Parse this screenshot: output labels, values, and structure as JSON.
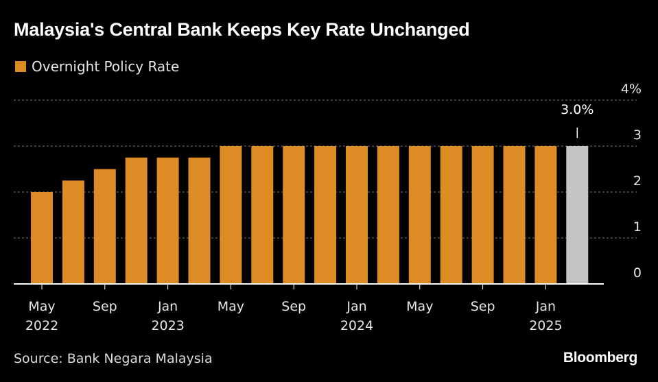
{
  "title": "Malaysia's Central Bank Keeps Key Rate Unchanged",
  "source": "Source: Bank Negara Malaysia",
  "brand": "Bloomberg",
  "colors": {
    "bar": "#dd8b24",
    "highlight": "#c4c4c4",
    "grid": "#7a7a7a",
    "background": "#000000"
  },
  "chart_data": {
    "type": "bar",
    "legend": [
      "Overnight Policy Rate"
    ],
    "legend_position": "top-left",
    "grid": true,
    "ylim": [
      0,
      4
    ],
    "y_ticks": [
      "0",
      "1",
      "2",
      "3",
      "4%"
    ],
    "x_tick_labels": [
      {
        "index": 0,
        "lines": [
          "May",
          "2022"
        ]
      },
      {
        "index": 2,
        "lines": [
          "Sep",
          ""
        ]
      },
      {
        "index": 4,
        "lines": [
          "Jan",
          "2023"
        ]
      },
      {
        "index": 6,
        "lines": [
          "May",
          ""
        ]
      },
      {
        "index": 8,
        "lines": [
          "Sep",
          ""
        ]
      },
      {
        "index": 10,
        "lines": [
          "Jan",
          "2024"
        ]
      },
      {
        "index": 12,
        "lines": [
          "May",
          ""
        ]
      },
      {
        "index": 14,
        "lines": [
          "Sep",
          ""
        ]
      },
      {
        "index": 16,
        "lines": [
          "Jan",
          "2025"
        ]
      }
    ],
    "series": [
      {
        "name": "Overnight Policy Rate",
        "values": [
          2.0,
          2.25,
          2.5,
          2.75,
          2.75,
          2.75,
          3.0,
          3.0,
          3.0,
          3.0,
          3.0,
          3.0,
          3.0,
          3.0,
          3.0,
          3.0,
          3.0,
          3.0
        ]
      }
    ],
    "highlight_index": 17,
    "annotation": "3.0%"
  }
}
